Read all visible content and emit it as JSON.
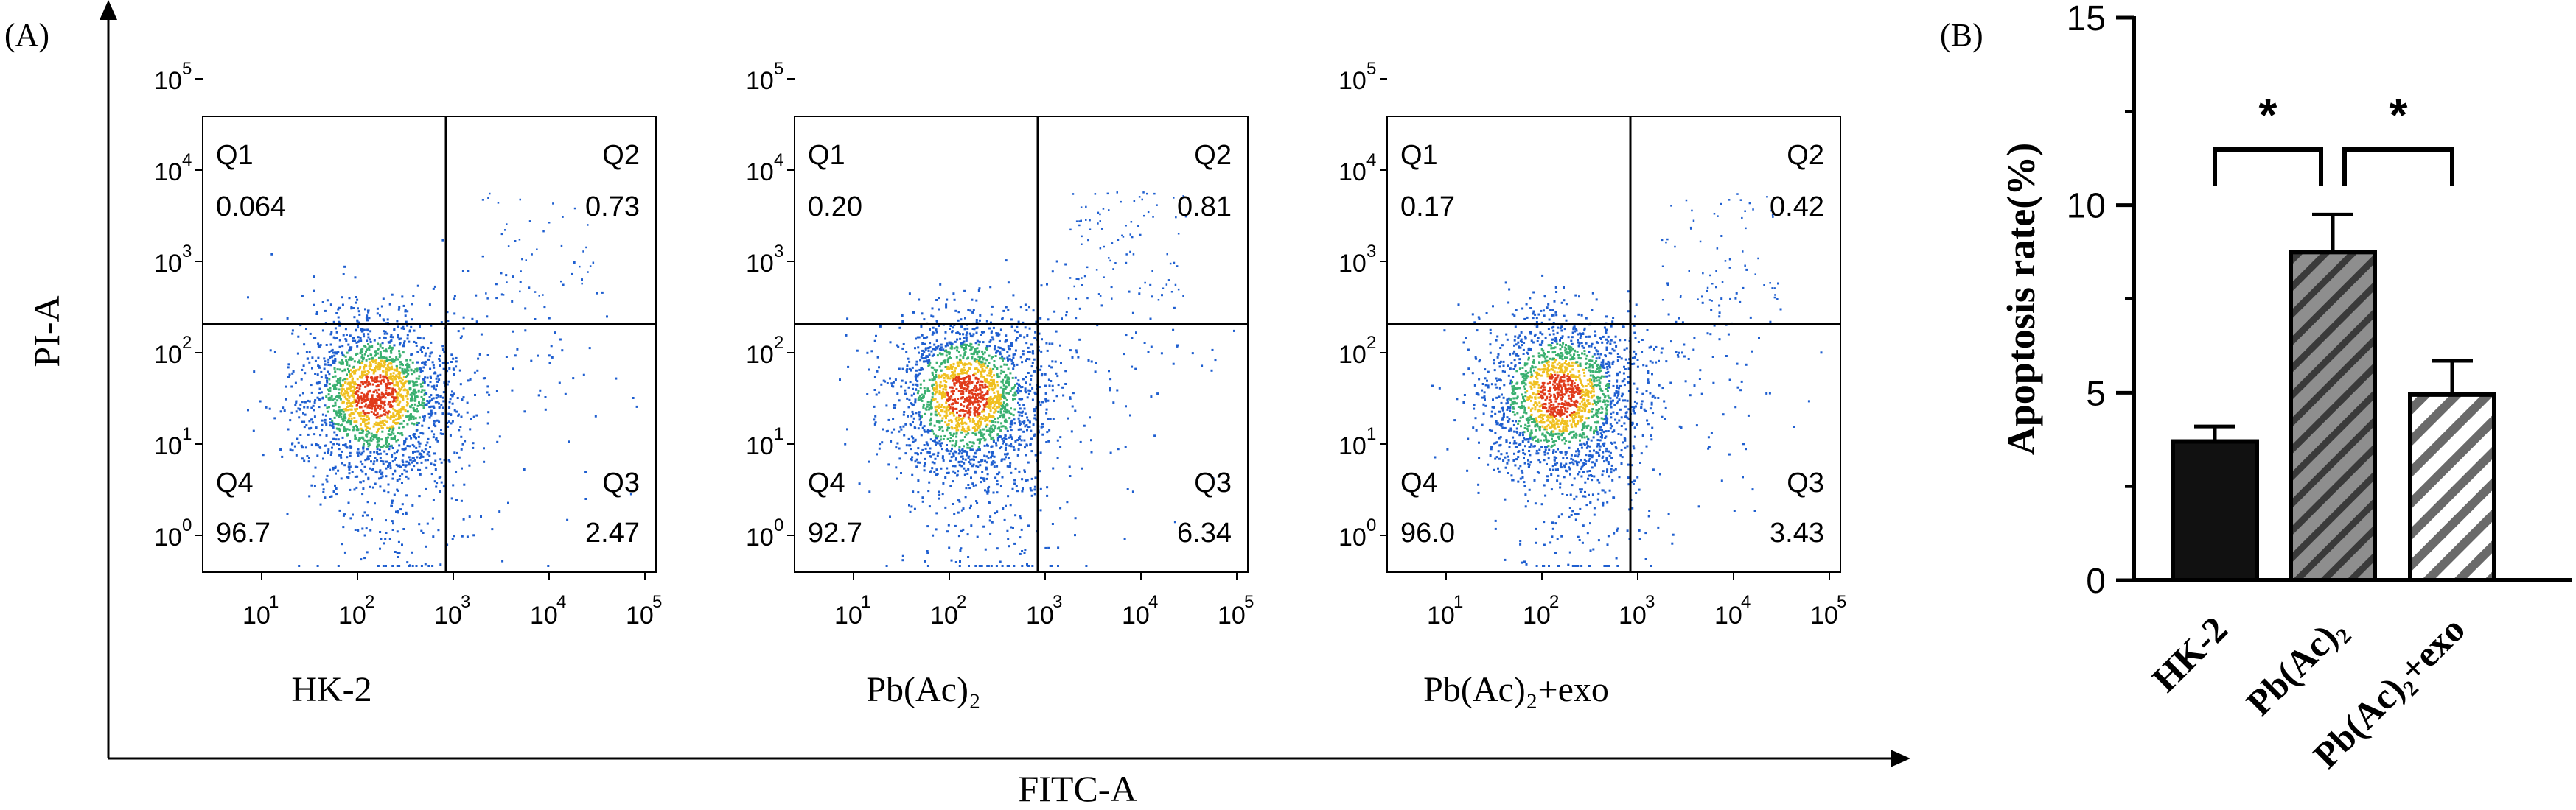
{
  "panel_a": {
    "label": "(A)",
    "y_axis_title": "PI-A",
    "x_axis_title": "FITC-A",
    "tick_labels": [
      "10",
      "1",
      "2",
      "3",
      "4",
      "5",
      "0"
    ],
    "plots": [
      {
        "sample": "HK-2",
        "q1": "0.064",
        "q2": "0.73",
        "q3": "2.47",
        "q4": "96.7",
        "q1_label": "Q1",
        "q2_label": "Q2",
        "q3_label": "Q3",
        "q4_label": "Q4"
      },
      {
        "sample": "Pb(Ac)₂",
        "q1": "0.20",
        "q2": "0.81",
        "q3": "6.34",
        "q4": "92.7",
        "q1_label": "Q1",
        "q2_label": "Q2",
        "q3_label": "Q3",
        "q4_label": "Q4"
      },
      {
        "sample": "Pb(Ac)₂+exo",
        "q1": "0.17",
        "q2": "0.42",
        "q3": "3.43",
        "q4": "96.0",
        "q1_label": "Q1",
        "q2_label": "Q2",
        "q3_label": "Q3",
        "q4_label": "Q4"
      }
    ]
  },
  "chart_data": {
    "type": "bar",
    "panel_label": "(B)",
    "title": "",
    "ylabel": "Apoptosis rate(%)",
    "xlabel": "",
    "categories": [
      "HK-2",
      "Pb(Ac)₂",
      "Pb(Ac)₂+exo"
    ],
    "values": [
      3.7,
      8.75,
      4.95
    ],
    "errors": [
      0.4,
      1.0,
      0.9
    ],
    "ylim": [
      0,
      15
    ],
    "yticks": [
      0,
      5,
      10,
      15
    ],
    "fills": [
      "solid",
      "hatched",
      "hatched"
    ],
    "bar_colors": [
      "#111111",
      "#8e8e8e",
      "#ffffff"
    ],
    "significance": [
      {
        "from": "HK-2",
        "to": "Pb(Ac)₂",
        "label": "*"
      },
      {
        "from": "Pb(Ac)₂",
        "to": "Pb(Ac)₂+exo",
        "label": "*"
      }
    ]
  }
}
